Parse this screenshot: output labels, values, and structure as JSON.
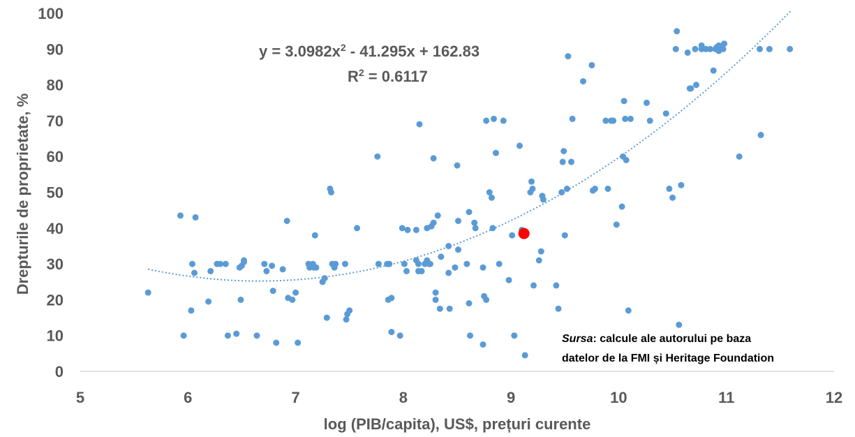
{
  "colors": {
    "points": "#5b9bd5",
    "highlight": "#ff0000",
    "trend": "#5b9bd5",
    "text": "#595959",
    "axis": "#d9d9d9"
  },
  "annotations": {
    "equation_main": "y = 3.0982x",
    "equation_exp": "2",
    "equation_rest": " - 41.295x + 162.83",
    "r2_label": "R",
    "r2_exp": "2",
    "r2_rest": " = 0.6117",
    "source_label": "Sursa",
    "source_line1": ": calcule ale autorului pe baza",
    "source_line2": "datelor de la FMI și Heritage Foundation"
  },
  "chart_data": {
    "type": "scatter",
    "xlabel": "log (PIB/capita), US$, prețuri curente",
    "ylabel": "Drepturile de proprietate, %",
    "xlim": [
      5,
      12
    ],
    "ylim": [
      0,
      100
    ],
    "xticks": [
      "5",
      "6",
      "7",
      "8",
      "9",
      "10",
      "11",
      "12"
    ],
    "yticks": [
      "0",
      "10",
      "20",
      "30",
      "40",
      "50",
      "60",
      "70",
      "80",
      "90",
      "100"
    ],
    "grid": false,
    "trendline": {
      "type": "polynomial",
      "order": 2,
      "coefficients": [
        3.0982,
        -41.295,
        162.83
      ],
      "r2": 0.6117,
      "x_range": [
        5.63,
        11.6
      ]
    },
    "highlight_point": {
      "x": 9.12,
      "y": 38.5
    },
    "points": [
      [
        5.63,
        22
      ],
      [
        5.93,
        43.5
      ],
      [
        5.96,
        10
      ],
      [
        6.03,
        17
      ],
      [
        6.04,
        30
      ],
      [
        6.06,
        27.5
      ],
      [
        6.07,
        43
      ],
      [
        6.19,
        19.5
      ],
      [
        6.21,
        28
      ],
      [
        6.27,
        30
      ],
      [
        6.3,
        30
      ],
      [
        6.35,
        30
      ],
      [
        6.37,
        10
      ],
      [
        6.45,
        10.5
      ],
      [
        6.48,
        29
      ],
      [
        6.49,
        20
      ],
      [
        6.5,
        29.5
      ],
      [
        6.52,
        30.5
      ],
      [
        6.52,
        31
      ],
      [
        6.64,
        10
      ],
      [
        6.71,
        30
      ],
      [
        6.73,
        28
      ],
      [
        6.78,
        29.5
      ],
      [
        6.79,
        22.5
      ],
      [
        6.82,
        8
      ],
      [
        6.88,
        28.5
      ],
      [
        6.92,
        42
      ],
      [
        6.93,
        20.5
      ],
      [
        6.97,
        20
      ],
      [
        7,
        22
      ],
      [
        7.02,
        8
      ],
      [
        7.12,
        30
      ],
      [
        7.13,
        29
      ],
      [
        7.16,
        30
      ],
      [
        7.17,
        29
      ],
      [
        7.18,
        38
      ],
      [
        7.19,
        29
      ],
      [
        7.25,
        25
      ],
      [
        7.27,
        26
      ],
      [
        7.29,
        15
      ],
      [
        7.32,
        51
      ],
      [
        7.33,
        50
      ],
      [
        7.34,
        30
      ],
      [
        7.36,
        29
      ],
      [
        7.37,
        30
      ],
      [
        7.46,
        30
      ],
      [
        7.47,
        14.5
      ],
      [
        7.48,
        16
      ],
      [
        7.5,
        17
      ],
      [
        7.57,
        40
      ],
      [
        7.76,
        60
      ],
      [
        7.77,
        30
      ],
      [
        7.85,
        30
      ],
      [
        7.87,
        30
      ],
      [
        7.89,
        11
      ],
      [
        7.86,
        20
      ],
      [
        7.89,
        20.5
      ],
      [
        7.97,
        10
      ],
      [
        7.99,
        40
      ],
      [
        8.01,
        30
      ],
      [
        8.03,
        28
      ],
      [
        8.04,
        39.5
      ],
      [
        8.12,
        31
      ],
      [
        8.12,
        39.5
      ],
      [
        8.14,
        30
      ],
      [
        8.15,
        69
      ],
      [
        8.14,
        28
      ],
      [
        8.17,
        28
      ],
      [
        8.2,
        30
      ],
      [
        8.22,
        31
      ],
      [
        8.22,
        40
      ],
      [
        8.24,
        30
      ],
      [
        8.25,
        30
      ],
      [
        8.26,
        40.5
      ],
      [
        8.28,
        59.5
      ],
      [
        8.28,
        41.5
      ],
      [
        8.3,
        22
      ],
      [
        8.3,
        20
      ],
      [
        8.32,
        43.5
      ],
      [
        8.34,
        17.5
      ],
      [
        8.35,
        32
      ],
      [
        8.42,
        27.5
      ],
      [
        8.42,
        35
      ],
      [
        8.43,
        17.5
      ],
      [
        8.48,
        29
      ],
      [
        8.5,
        57.5
      ],
      [
        8.51,
        42
      ],
      [
        8.51,
        34
      ],
      [
        8.59,
        30
      ],
      [
        8.61,
        44.5
      ],
      [
        8.61,
        19
      ],
      [
        8.62,
        10
      ],
      [
        8.66,
        41.5
      ],
      [
        8.67,
        40
      ],
      [
        8.74,
        7.5
      ],
      [
        8.74,
        29
      ],
      [
        8.75,
        21
      ],
      [
        8.77,
        20
      ],
      [
        8.77,
        70
      ],
      [
        8.8,
        50
      ],
      [
        8.82,
        48.5
      ],
      [
        8.83,
        40
      ],
      [
        8.84,
        70.5
      ],
      [
        8.86,
        61
      ],
      [
        8.89,
        30
      ],
      [
        8.93,
        70
      ],
      [
        8.98,
        25.5
      ],
      [
        9.01,
        38
      ],
      [
        9.03,
        10
      ],
      [
        9.08,
        63
      ],
      [
        9.1,
        39.5
      ],
      [
        9.13,
        4.5
      ],
      [
        9.18,
        50
      ],
      [
        9.19,
        53
      ],
      [
        9.2,
        51
      ],
      [
        9.21,
        24
      ],
      [
        9.26,
        31
      ],
      [
        9.28,
        33.5
      ],
      [
        9.29,
        49
      ],
      [
        9.3,
        48
      ],
      [
        9.42,
        24
      ],
      [
        9.44,
        17.5
      ],
      [
        9.47,
        50
      ],
      [
        9.48,
        58.5
      ],
      [
        9.49,
        61.5
      ],
      [
        9.5,
        38
      ],
      [
        9.52,
        51
      ],
      [
        9.53,
        88
      ],
      [
        9.56,
        58.5
      ],
      [
        9.57,
        70.5
      ],
      [
        9.67,
        81
      ],
      [
        9.75,
        85.5
      ],
      [
        9.76,
        50.5
      ],
      [
        9.78,
        51
      ],
      [
        9.88,
        70
      ],
      [
        9.9,
        51
      ],
      [
        9.93,
        70
      ],
      [
        9.95,
        70
      ],
      [
        9.98,
        41
      ],
      [
        10.03,
        46
      ],
      [
        10.04,
        60
      ],
      [
        10.05,
        75.5
      ],
      [
        10.06,
        70.5
      ],
      [
        10.07,
        59
      ],
      [
        10.09,
        17
      ],
      [
        10.11,
        70.5
      ],
      [
        10.26,
        75
      ],
      [
        10.29,
        70
      ],
      [
        10.44,
        72
      ],
      [
        10.47,
        51
      ],
      [
        10.5,
        48.5
      ],
      [
        10.53,
        90
      ],
      [
        10.54,
        95
      ],
      [
        10.56,
        13
      ],
      [
        10.58,
        52
      ],
      [
        10.64,
        89
      ],
      [
        10.66,
        79
      ],
      [
        10.67,
        79
      ],
      [
        10.71,
        90
      ],
      [
        10.72,
        80
      ],
      [
        10.77,
        90
      ],
      [
        10.77,
        91
      ],
      [
        10.81,
        90
      ],
      [
        10.85,
        90
      ],
      [
        10.88,
        84
      ],
      [
        10.9,
        90
      ],
      [
        10.91,
        90.5
      ],
      [
        10.93,
        89.5
      ],
      [
        10.93,
        91
      ],
      [
        10.97,
        90
      ],
      [
        10.98,
        91.5
      ],
      [
        11.12,
        60
      ],
      [
        11.31,
        90
      ],
      [
        11.32,
        66
      ],
      [
        11.4,
        90
      ],
      [
        11.59,
        90
      ]
    ]
  }
}
